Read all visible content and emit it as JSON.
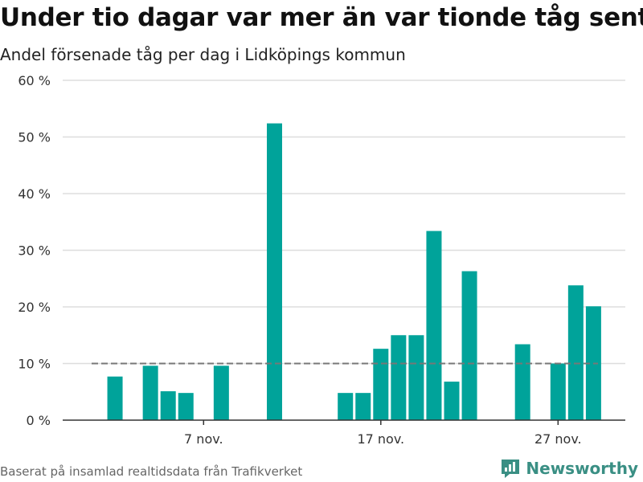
{
  "title": "Under tio dagar var mer än var tionde tåg sent",
  "subtitle": "Andel försenade tåg per dag i Lidköpings kommun",
  "source": "Baserat på insamlad realtidsdata från Trafikverket",
  "brand": "Newsworthy",
  "colors": {
    "bar": "#00a39a",
    "reference": "#777777",
    "grid": "#dddddd",
    "brand": "#3a8f84"
  },
  "chart_data": {
    "type": "bar",
    "x": [
      "1 nov.",
      "2 nov.",
      "3 nov.",
      "4 nov.",
      "5 nov.",
      "6 nov.",
      "7 nov.",
      "8 nov.",
      "9 nov.",
      "10 nov.",
      "11 nov.",
      "12 nov.",
      "13 nov.",
      "14 nov.",
      "15 nov.",
      "16 nov.",
      "17 nov.",
      "18 nov.",
      "19 nov.",
      "20 nov.",
      "21 nov.",
      "22 nov.",
      "23 nov.",
      "24 nov.",
      "25 nov.",
      "26 nov.",
      "27 nov.",
      "28 nov.",
      "29 nov.",
      "30 nov."
    ],
    "values": [
      null,
      7.7,
      null,
      9.6,
      5.1,
      4.8,
      null,
      9.6,
      null,
      null,
      52.4,
      null,
      null,
      null,
      4.8,
      4.8,
      12.6,
      15.0,
      15.0,
      33.4,
      6.8,
      26.3,
      null,
      null,
      13.4,
      null,
      10.0,
      23.8,
      20.1,
      null
    ],
    "reference_line": 10,
    "ylim": [
      0,
      60
    ],
    "yticks": [
      0,
      10,
      20,
      30,
      40,
      50,
      60
    ],
    "ytick_labels": [
      "0 %",
      "10 %",
      "20 %",
      "30 %",
      "40 %",
      "50 %",
      "60 %"
    ],
    "xticks": [
      "7 nov.",
      "17 nov.",
      "27 nov."
    ],
    "grid": true
  }
}
